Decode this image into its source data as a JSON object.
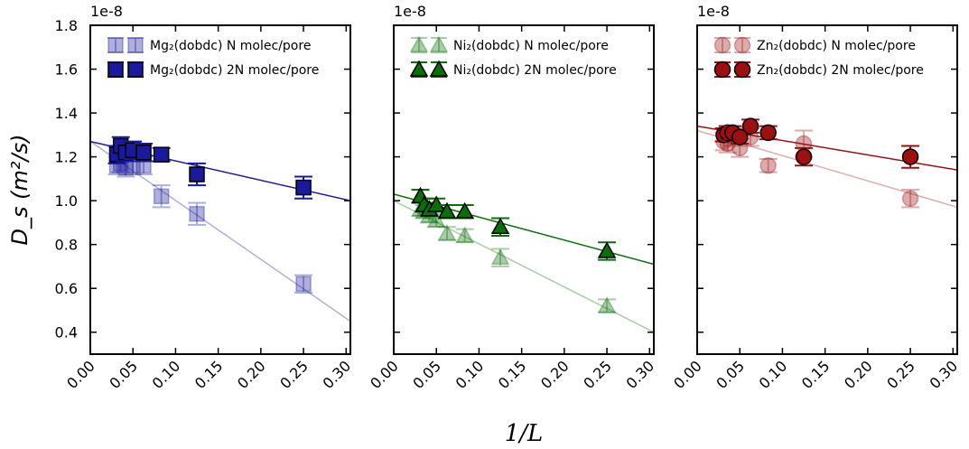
{
  "chart_data": [
    {
      "type": "scatter",
      "marker": "square",
      "exponent": "1e-8",
      "ylabel": "D_s (m²/s)",
      "ytick_labels": true,
      "xlim": [
        0,
        0.305
      ],
      "ylim": [
        0.3,
        1.8
      ],
      "xticks": [
        {
          "value": 0,
          "label": "0.00"
        },
        0.05,
        {
          "value": 0.1,
          "label": "0.10"
        },
        0.15,
        {
          "value": 0.2,
          "label": "0.20"
        },
        0.25,
        {
          "value": 0.3,
          "label": "0.30"
        }
      ],
      "yticks": [
        0.4,
        0.6,
        0.8,
        {
          "value": 1,
          "label": "1.0"
        },
        1.2,
        1.4,
        1.6,
        1.8
      ],
      "series": [
        {
          "name": "Mg₂(dobdc) N molec/pore",
          "color": "#1a1a9a",
          "alpha": 0.35,
          "x": [
            0.03125,
            0.0357,
            0.0417,
            0.05,
            0.0625,
            0.0833,
            0.125,
            0.25
          ],
          "values": [
            1.16,
            1.17,
            1.15,
            1.16,
            1.16,
            1.02,
            0.94,
            0.62
          ],
          "errors": [
            0.04,
            0.04,
            0.04,
            0.04,
            0.04,
            0.05,
            0.05,
            0.04
          ],
          "fit_x": [
            0,
            0.305
          ],
          "fit_values": [
            1.27,
            0.45
          ]
        },
        {
          "name": "Mg₂(dobdc) 2N molec/pore",
          "color": "#1a1a9a",
          "alpha": 1,
          "x": [
            0.03125,
            0.0357,
            0.0417,
            0.05,
            0.0625,
            0.0833,
            0.125,
            0.25
          ],
          "values": [
            1.21,
            1.25,
            1.22,
            1.23,
            1.22,
            1.21,
            1.12,
            1.06
          ],
          "errors": [
            0.04,
            0.04,
            0.04,
            0.04,
            0.04,
            0.03,
            0.05,
            0.05
          ],
          "fit_x": [
            0,
            0.305
          ],
          "fit_values": [
            1.27,
            1.0
          ]
        }
      ]
    },
    {
      "type": "scatter",
      "marker": "triangle",
      "exponent": "1e-8",
      "xlabel": "1/L",
      "ytick_labels": false,
      "xlim": [
        0,
        0.305
      ],
      "ylim": [
        0.3,
        1.8
      ],
      "xticks": [
        {
          "value": 0,
          "label": "0.00"
        },
        0.05,
        {
          "value": 0.1,
          "label": "0.10"
        },
        0.15,
        {
          "value": 0.2,
          "label": "0.20"
        },
        0.25,
        {
          "value": 0.3,
          "label": "0.30"
        }
      ],
      "yticks": [
        0.4,
        0.6,
        0.8,
        1,
        1.2,
        1.4,
        1.6,
        1.8
      ],
      "series": [
        {
          "name": "Ni₂(dobdc) N molec/pore",
          "color": "#0b6e0b",
          "alpha": 0.35,
          "x": [
            0.03125,
            0.0357,
            0.0417,
            0.05,
            0.0625,
            0.0833,
            0.125,
            0.25
          ],
          "values": [
            0.96,
            0.95,
            0.93,
            0.91,
            0.85,
            0.84,
            0.74,
            0.52
          ],
          "errors": [
            0.03,
            0.03,
            0.03,
            0.03,
            0.03,
            0.03,
            0.04,
            0.03
          ],
          "fit_x": [
            0,
            0.305
          ],
          "fit_values": [
            1.0,
            0.4
          ]
        },
        {
          "name": "Ni₂(dobdc) 2N molec/pore",
          "color": "#0b6e0b",
          "alpha": 1,
          "x": [
            0.03125,
            0.0357,
            0.0417,
            0.05,
            0.0625,
            0.0833,
            0.125,
            0.25
          ],
          "values": [
            1.02,
            0.98,
            0.96,
            0.98,
            0.95,
            0.95,
            0.88,
            0.77
          ],
          "errors": [
            0.03,
            0.03,
            0.03,
            0.03,
            0.03,
            0.03,
            0.04,
            0.04
          ],
          "fit_x": [
            0,
            0.305
          ],
          "fit_values": [
            1.03,
            0.71
          ]
        }
      ]
    },
    {
      "type": "scatter",
      "marker": "circle",
      "exponent": "1e-8",
      "ytick_labels": false,
      "xlim": [
        0,
        0.305
      ],
      "ylim": [
        0.3,
        1.8
      ],
      "xticks": [
        {
          "value": 0,
          "label": "0.00"
        },
        0.05,
        {
          "value": 0.1,
          "label": "0.10"
        },
        0.15,
        {
          "value": 0.2,
          "label": "0.20"
        },
        0.25,
        {
          "value": 0.3,
          "label": "0.30"
        }
      ],
      "yticks": [
        0.4,
        0.6,
        0.8,
        1,
        1.2,
        1.4,
        1.6,
        1.8
      ],
      "series": [
        {
          "name": "Zn₂(dobdc) N molec/pore",
          "color": "#9b1010",
          "alpha": 0.35,
          "x": [
            0.03125,
            0.0357,
            0.0417,
            0.05,
            0.0625,
            0.0833,
            0.125,
            0.25
          ],
          "values": [
            1.27,
            1.26,
            1.29,
            1.24,
            1.29,
            1.16,
            1.26,
            1.01
          ],
          "errors": [
            0.04,
            0.04,
            0.04,
            0.04,
            0.04,
            0.03,
            0.06,
            0.04
          ],
          "fit_x": [
            0,
            0.305
          ],
          "fit_values": [
            1.32,
            0.97
          ]
        },
        {
          "name": "Zn₂(dobdc) 2N molec/pore",
          "color": "#9b1010",
          "alpha": 1,
          "x": [
            0.03125,
            0.0357,
            0.0417,
            0.05,
            0.0625,
            0.0833,
            0.125,
            0.25
          ],
          "values": [
            1.3,
            1.31,
            1.31,
            1.29,
            1.34,
            1.31,
            1.2,
            1.2
          ],
          "errors": [
            0.03,
            0.03,
            0.03,
            0.03,
            0.03,
            0.03,
            0.04,
            0.05
          ],
          "fit_x": [
            0,
            0.305
          ],
          "fit_values": [
            1.34,
            1.14
          ]
        }
      ]
    }
  ]
}
